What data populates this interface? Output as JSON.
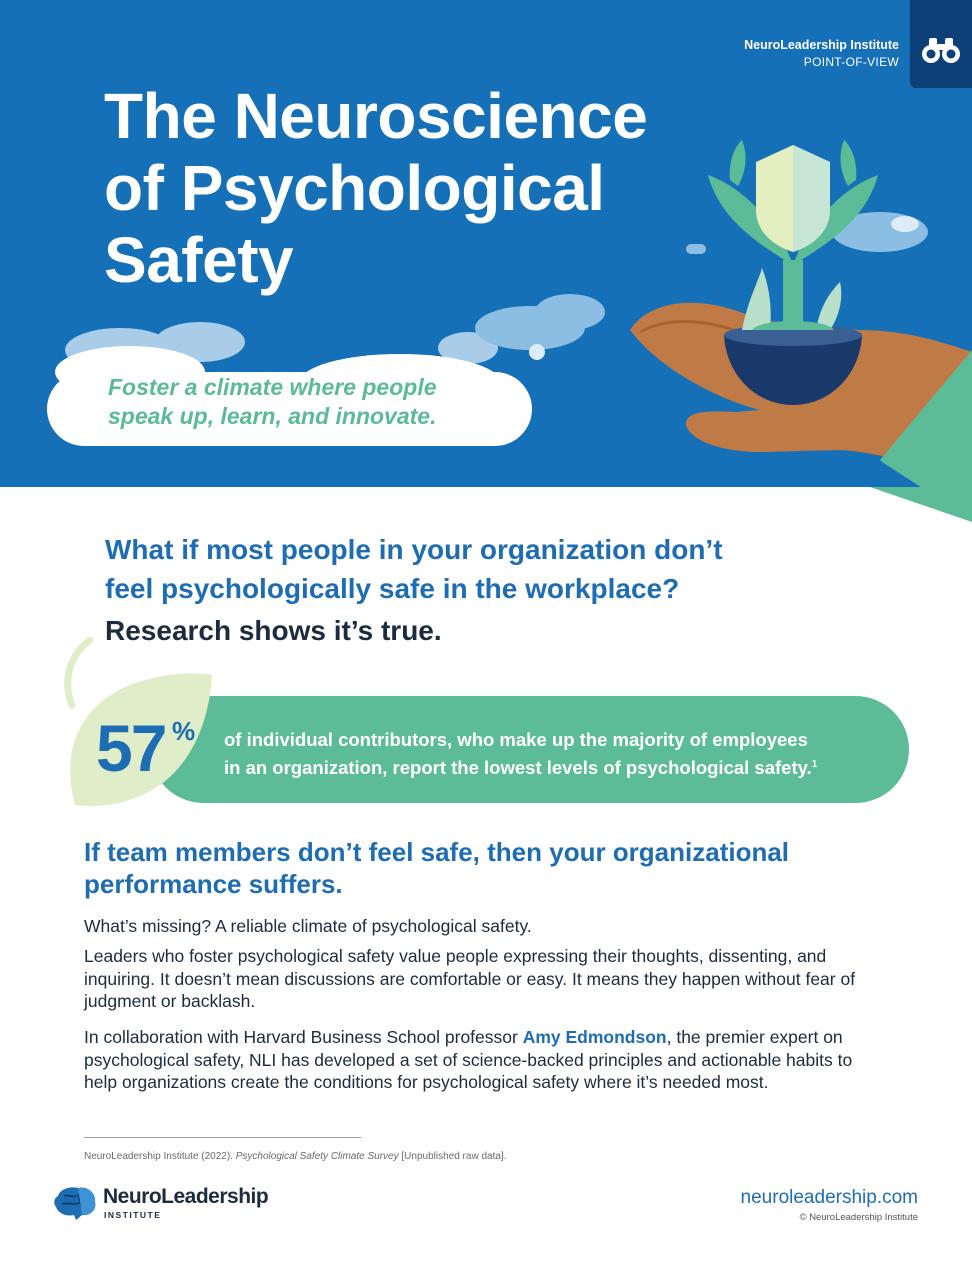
{
  "header": {
    "org_name": "NeuroLeadership Institute",
    "doc_type": "POINT-OF-VIEW",
    "title_line1": "The Neuroscience",
    "title_line2": "of Psychological",
    "title_line3": "Safety",
    "tagline_line1": "Foster a climate where people",
    "tagline_line2": "speak up, learn, and innovate."
  },
  "question": {
    "line1": "What if most people in your organization don’t",
    "line2": "feel psychologically safe in the workplace?",
    "answer": "Research shows it’s true."
  },
  "stat": {
    "number": "57",
    "unit": "%",
    "text_line1": "of individual contributors, who make up the majority of employees",
    "text_line2": "in an organization, report the lowest levels of psychological safety.",
    "footnote_ref": "1"
  },
  "section": {
    "heading_line1": "If team members don’t feel safe, then your organizational",
    "heading_line2": "performance suffers.",
    "p1": "What’s missing? A reliable climate of psychological safety.",
    "p2": "Leaders who foster psychological safety value people expressing their thoughts, dissenting, and inquiring. It doesn’t mean discussions are comfortable or easy. It means they happen without fear of judgment or backlash.",
    "p3_before": "In collaboration with Harvard Business School professor ",
    "p3_name": "Amy Edmondson",
    "p3_after": ", the premier expert on psychological safety, NLI has developed a set of science-backed principles and actionable habits to help organizations create the conditions for psychological safety where it’s needed most."
  },
  "footnote": {
    "before": "NeuroLeadership Institute (2022). ",
    "title": "Psychological Safety Climate Survey",
    "after": " [Unpublished raw data]."
  },
  "footer": {
    "logo_name": "NeuroLeadership",
    "logo_sub": "INSTITUTE",
    "url": "neuroleadership.com",
    "copyright": "© NeuroLeadership Institute"
  },
  "colors": {
    "hero_blue": "#1570b8",
    "navy": "#0d3f78",
    "heading_blue": "#1e6db3",
    "green": "#5dbc98",
    "text_dark": "#1c2b3f"
  }
}
